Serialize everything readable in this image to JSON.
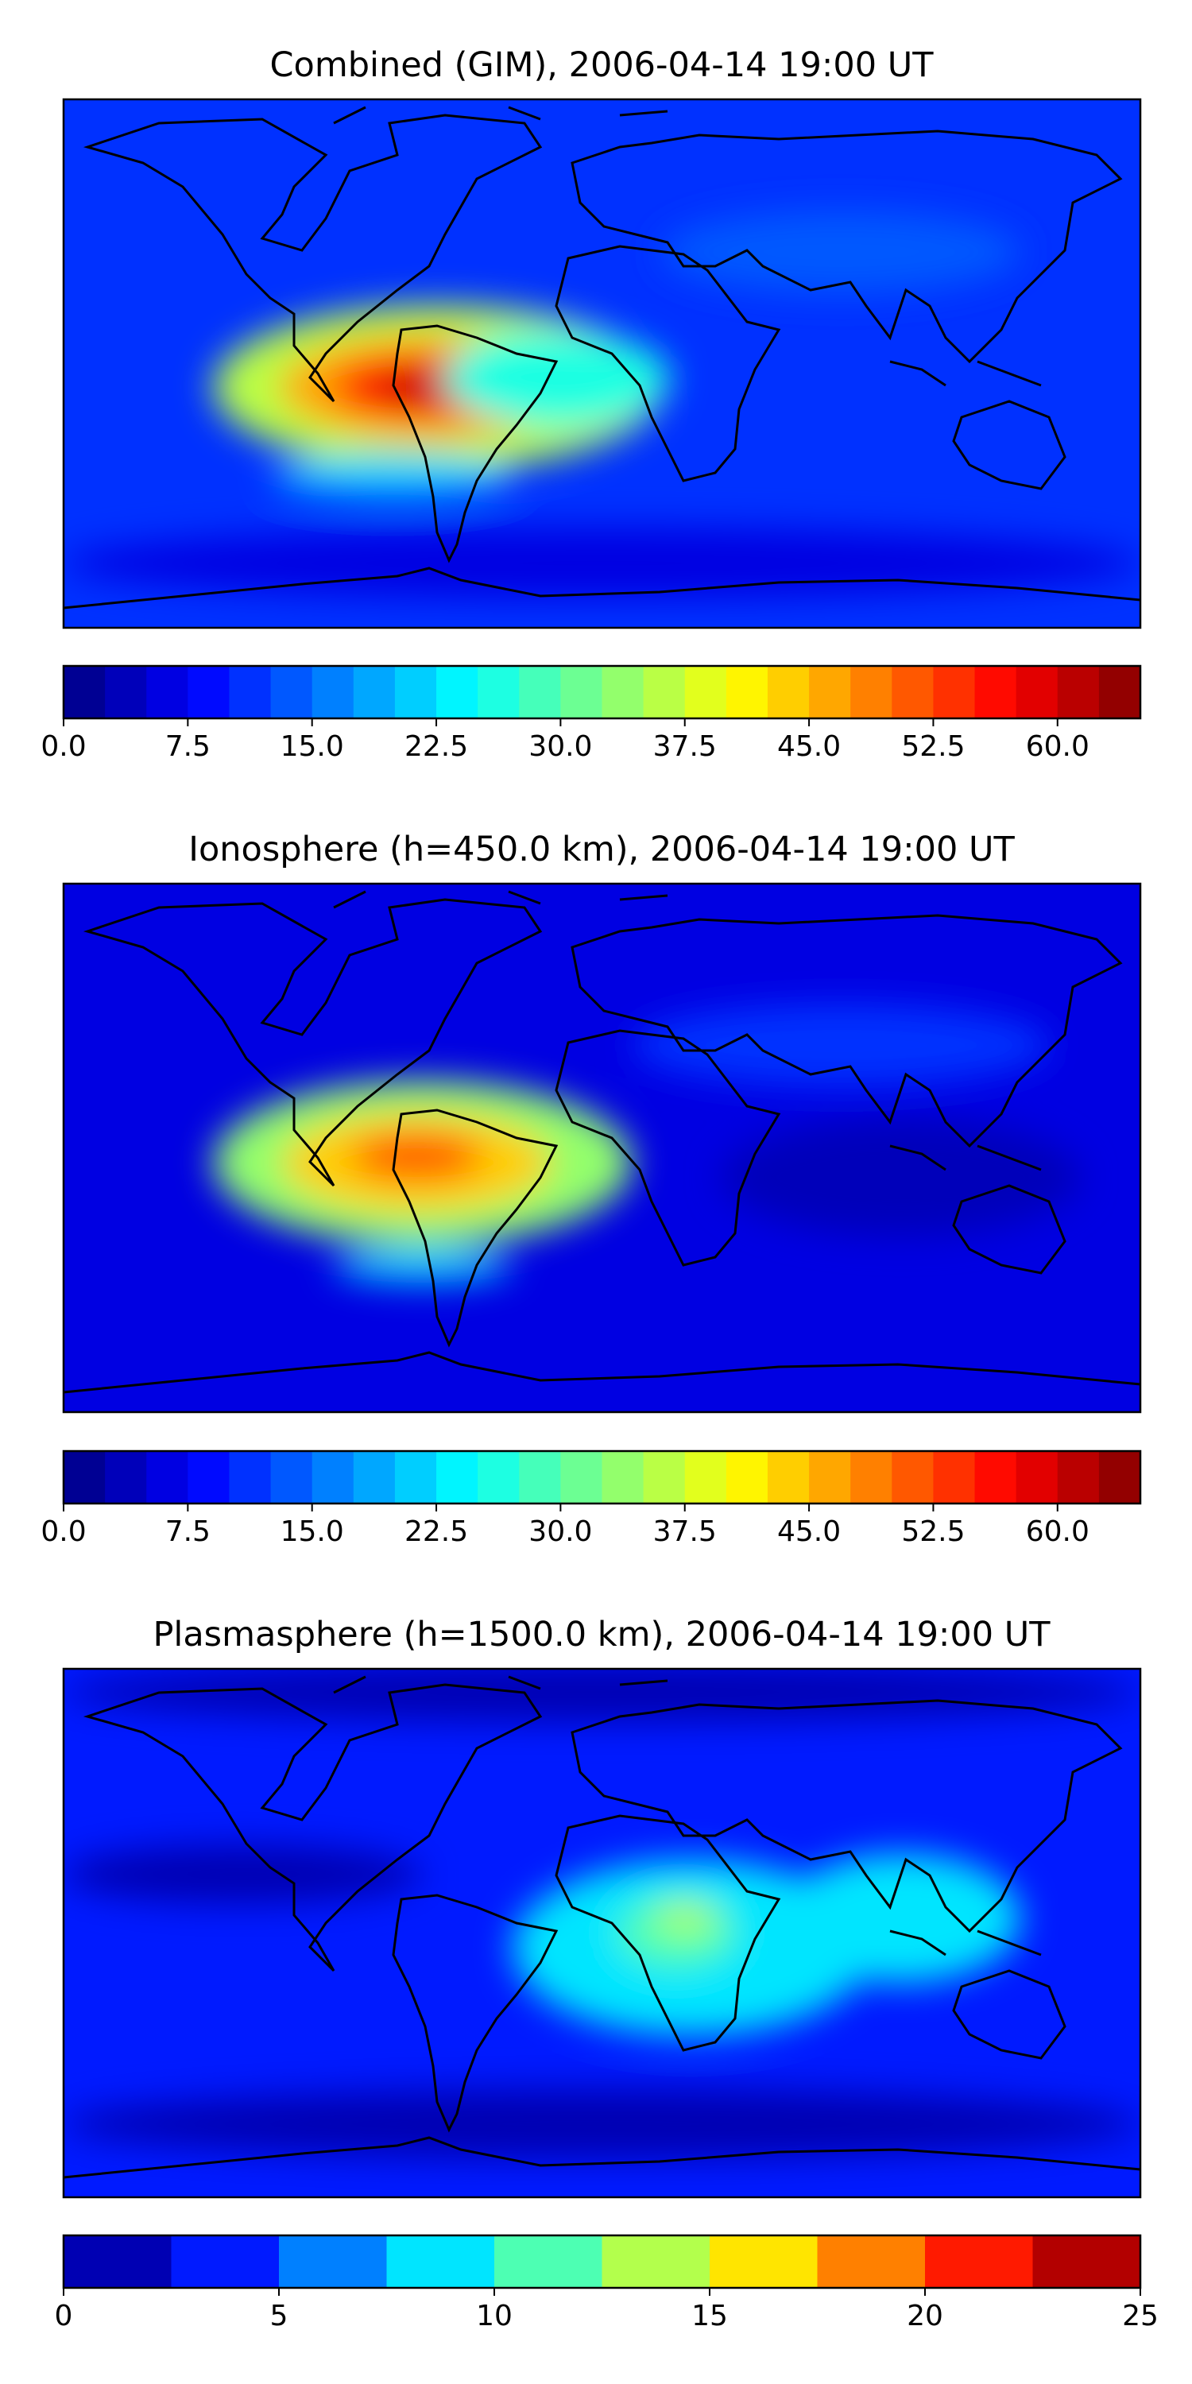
{
  "chart_data": [
    {
      "type": "heatmap",
      "title": "Combined (GIM), 2006-04-14 19:00 UT",
      "colorbar": {
        "min": 0,
        "max": 65,
        "step": 2.5,
        "ticks": [
          0,
          7.5,
          15,
          22.5,
          30,
          37.5,
          45,
          52.5,
          60
        ],
        "tick_labels": [
          "0.0",
          "7.5",
          "15.0",
          "22.5",
          "30.0",
          "37.5",
          "45.0",
          "52.5",
          "60.0"
        ]
      },
      "background_value": 10,
      "blobs": [
        {
          "lon": -55,
          "lat": -8,
          "rx": 75,
          "ry": 28,
          "value": 36
        },
        {
          "lon": -58,
          "lat": -8,
          "rx": 50,
          "ry": 18,
          "value": 47
        },
        {
          "lon": -60,
          "lat": -8,
          "rx": 30,
          "ry": 11,
          "value": 55
        },
        {
          "lon": -60,
          "lat": -8,
          "rx": 14,
          "ry": 5,
          "value": 60
        },
        {
          "lon": -15,
          "lat": -5,
          "rx": 38,
          "ry": 16,
          "value": 26
        },
        {
          "lon": -70,
          "lat": -38,
          "rx": 40,
          "ry": 7,
          "value": 21
        },
        {
          "lon": 80,
          "lat": 38,
          "rx": 60,
          "ry": 14,
          "value": 14
        },
        {
          "lon": 0,
          "lat": -68,
          "rx": 180,
          "ry": 12,
          "value": 7
        }
      ]
    },
    {
      "type": "heatmap",
      "title": "Ionosphere  (h=450.0 km), 2006-04-14 19:00 UT",
      "colorbar": {
        "min": 0,
        "max": 65,
        "step": 2.5,
        "ticks": [
          0,
          7.5,
          15,
          22.5,
          30,
          37.5,
          45,
          52.5,
          60
        ],
        "tick_labels": [
          "0.0",
          "7.5",
          "15.0",
          "22.5",
          "30.0",
          "37.5",
          "45.0",
          "52.5",
          "60.0"
        ]
      },
      "background_value": 6,
      "blobs": [
        {
          "lon": -60,
          "lat": -5,
          "rx": 70,
          "ry": 28,
          "value": 34
        },
        {
          "lon": -62,
          "lat": -5,
          "rx": 45,
          "ry": 17,
          "value": 44
        },
        {
          "lon": -62,
          "lat": -3,
          "rx": 22,
          "ry": 8,
          "value": 51
        },
        {
          "lon": -60,
          "lat": -40,
          "rx": 30,
          "ry": 6,
          "value": 20
        },
        {
          "lon": 80,
          "lat": 35,
          "rx": 70,
          "ry": 14,
          "value": 10
        },
        {
          "lon": 100,
          "lat": -10,
          "rx": 60,
          "ry": 20,
          "value": 3
        }
      ]
    },
    {
      "type": "heatmap",
      "title": "Plasmasphere (h=1500.0 km), 2006-04-14 19:00 UT",
      "colorbar": {
        "min": 0,
        "max": 25,
        "step": 2.5,
        "ticks": [
          0,
          5,
          10,
          15,
          20,
          25
        ],
        "tick_labels": [
          "0",
          "5",
          "10",
          "15",
          "20",
          "25"
        ]
      },
      "background_value": 4,
      "blobs": [
        {
          "lon": 30,
          "lat": -5,
          "rx": 60,
          "ry": 30,
          "value": 8.5
        },
        {
          "lon": 100,
          "lat": 5,
          "rx": 40,
          "ry": 22,
          "value": 8
        },
        {
          "lon": 25,
          "lat": 0,
          "rx": 20,
          "ry": 12,
          "value": 11
        },
        {
          "lon": 28,
          "lat": 5,
          "rx": 10,
          "ry": 5,
          "value": 14
        },
        {
          "lon": -120,
          "lat": 20,
          "rx": 60,
          "ry": 10,
          "value": 1.5
        },
        {
          "lon": 0,
          "lat": -65,
          "rx": 180,
          "ry": 12,
          "value": 1
        },
        {
          "lon": 0,
          "lat": 82,
          "rx": 180,
          "ry": 10,
          "value": 1.5
        }
      ]
    }
  ]
}
